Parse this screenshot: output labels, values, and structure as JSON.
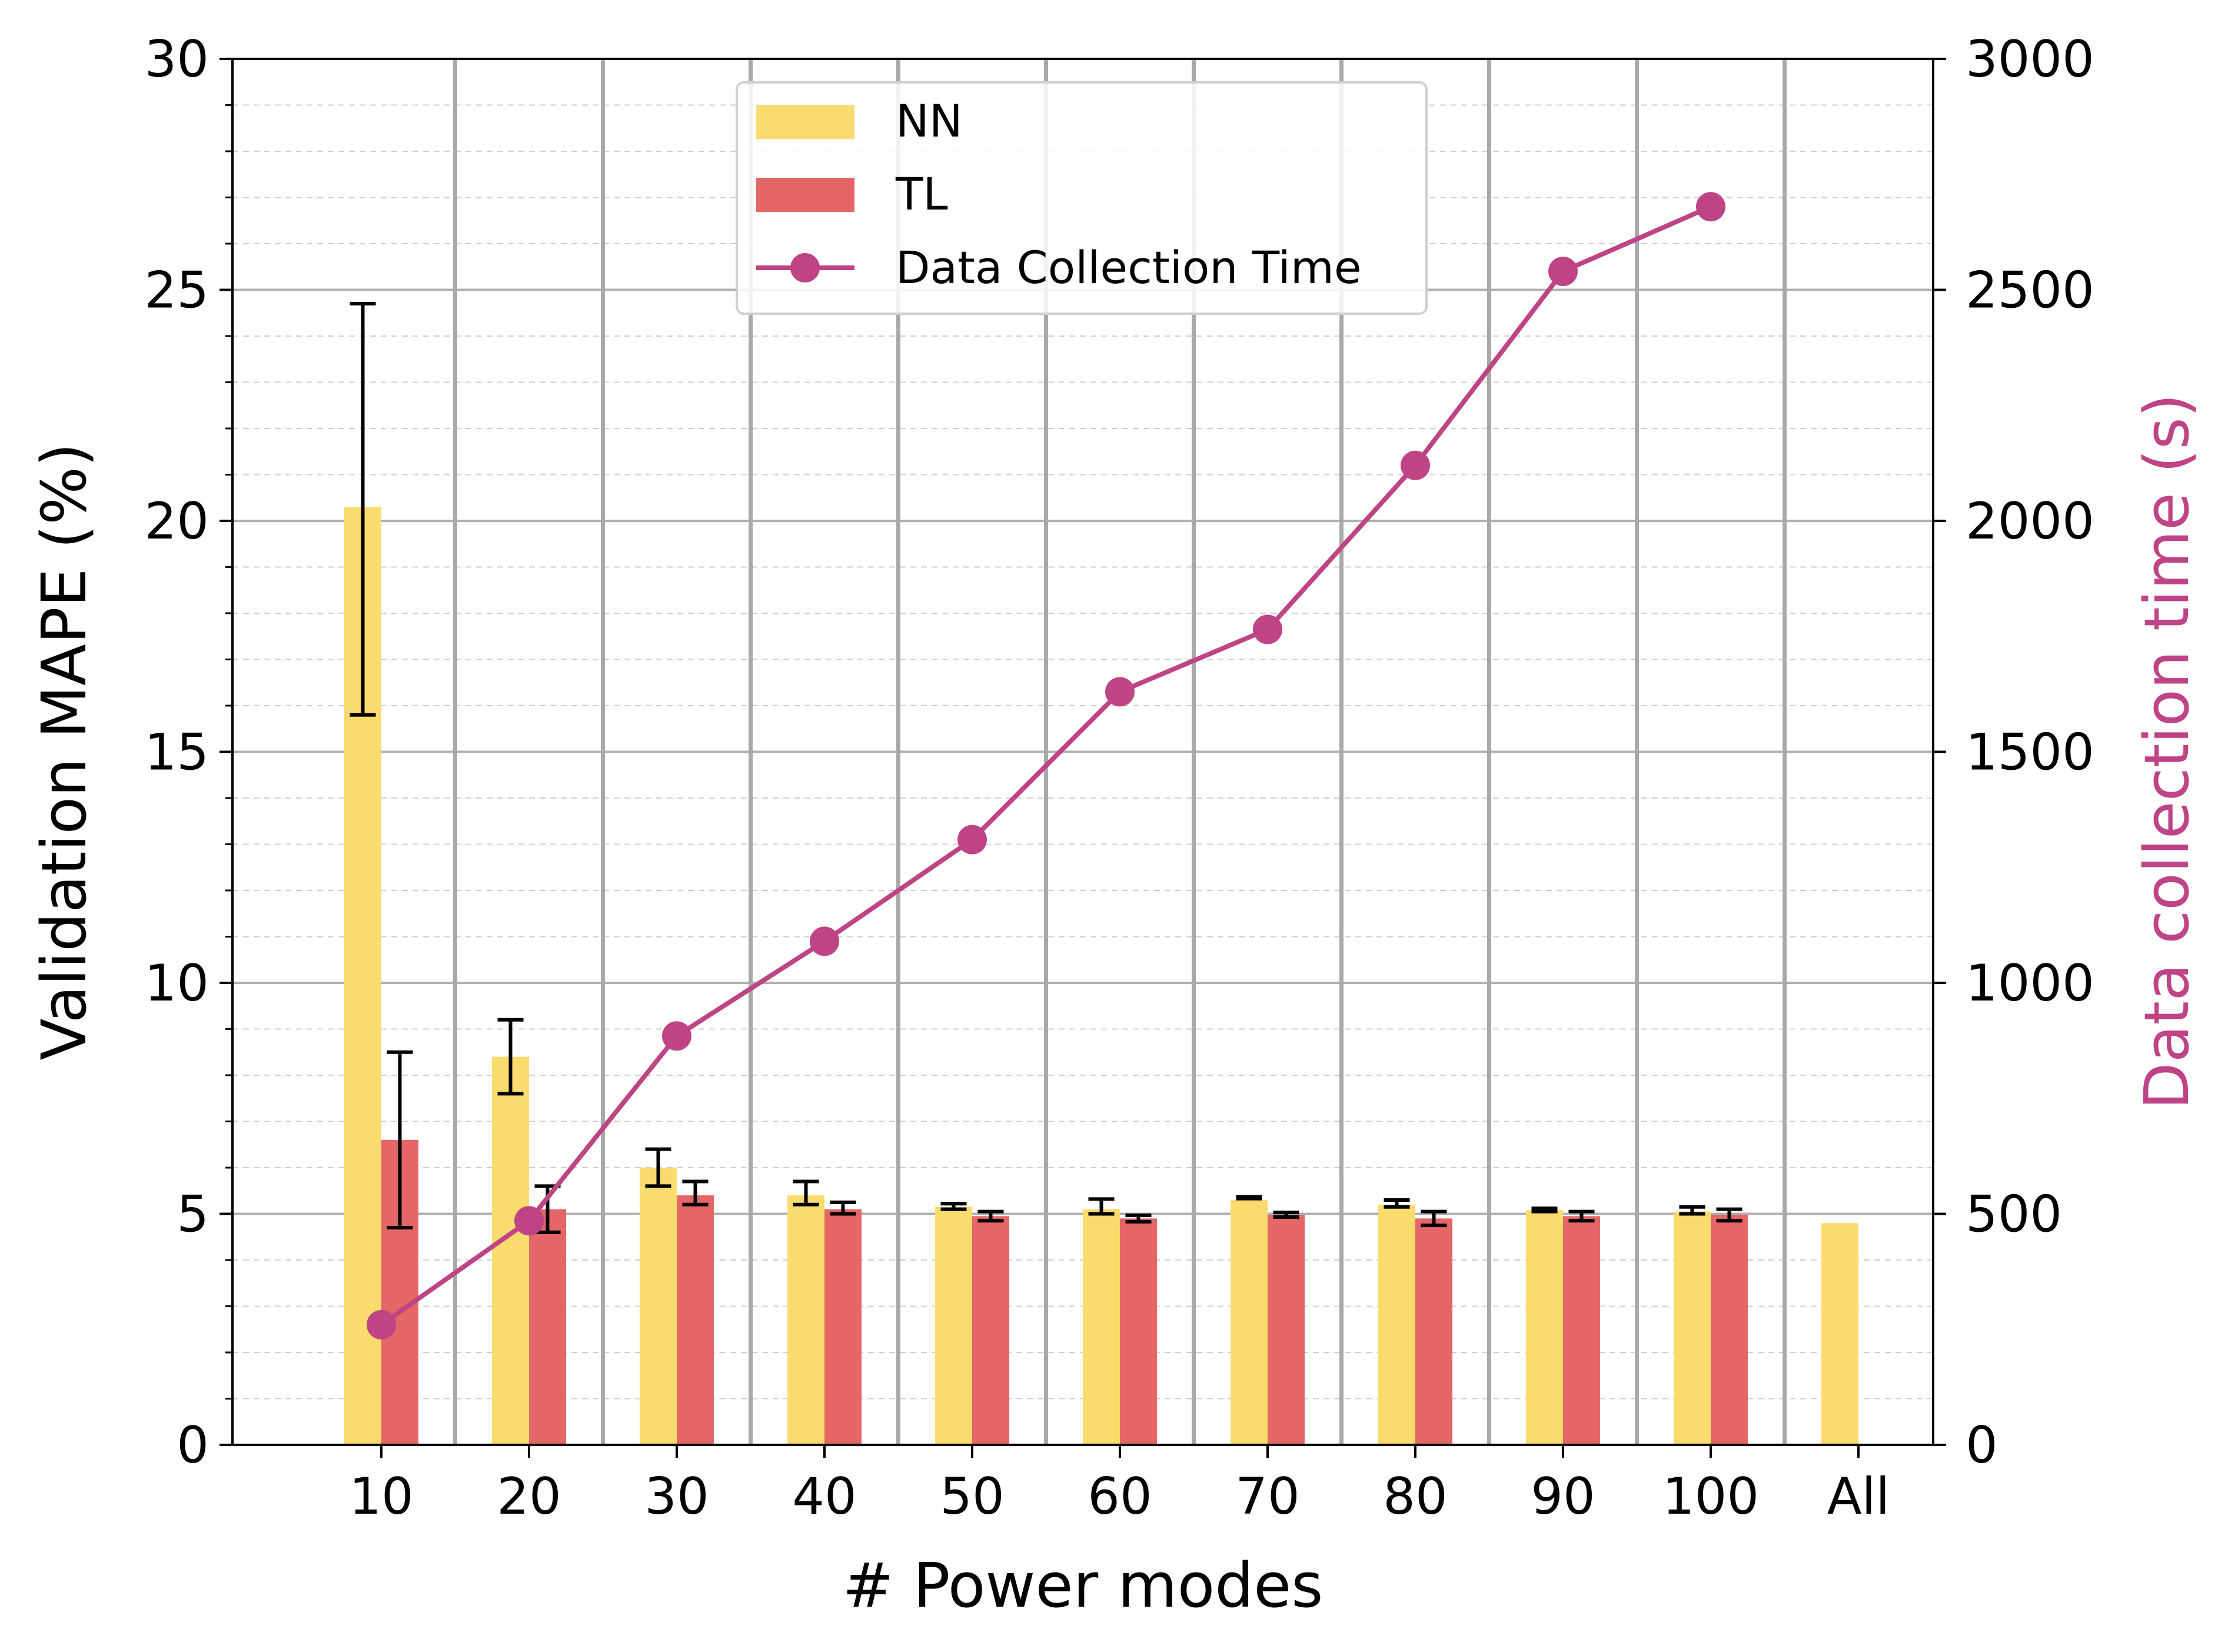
{
  "chart_data": {
    "type": "bar",
    "categories": [
      "10",
      "20",
      "30",
      "40",
      "50",
      "60",
      "70",
      "80",
      "90",
      "100",
      "All"
    ],
    "series": [
      {
        "name": "NN",
        "axis": "left",
        "color": "#FADC6E",
        "values": [
          20.3,
          8.4,
          6.0,
          5.4,
          5.15,
          5.1,
          5.3,
          5.2,
          5.08,
          5.05,
          4.8
        ],
        "error_low": [
          15.8,
          7.6,
          5.6,
          5.2,
          5.1,
          5.0,
          5.33,
          5.15,
          5.05,
          5.0,
          null
        ],
        "error_high": [
          24.7,
          9.2,
          6.4,
          5.7,
          5.22,
          5.32,
          5.37,
          5.3,
          5.12,
          5.15,
          null
        ]
      },
      {
        "name": "TL",
        "axis": "left",
        "color": "#E46666",
        "values": [
          6.6,
          5.1,
          5.4,
          5.1,
          4.95,
          4.9,
          4.98,
          4.9,
          4.95,
          4.98,
          null
        ],
        "error_low": [
          4.7,
          4.6,
          5.2,
          5.0,
          4.85,
          4.83,
          4.93,
          4.75,
          4.85,
          4.85,
          null
        ],
        "error_high": [
          8.5,
          5.6,
          5.7,
          5.25,
          5.05,
          4.97,
          5.03,
          5.05,
          5.05,
          5.1,
          null
        ]
      },
      {
        "name": "Data Collection Time",
        "axis": "right",
        "type": "line",
        "color": "#BE4486",
        "values": [
          260,
          485,
          885,
          1090,
          1310,
          1630,
          1765,
          2120,
          2540,
          2680,
          null
        ]
      }
    ],
    "title": "",
    "xlabel": "# Power modes",
    "ylabel": "Validation MAPE (%)",
    "y2label": "Data collection time (s)",
    "ylim": [
      0,
      30
    ],
    "y2lim": [
      0,
      3000
    ],
    "yticks": [
      0,
      5,
      10,
      15,
      20,
      25,
      30
    ],
    "y2ticks": [
      0,
      500,
      1000,
      1500,
      2000,
      2500,
      3000
    ],
    "grid": true,
    "legend_position": "top-center"
  }
}
